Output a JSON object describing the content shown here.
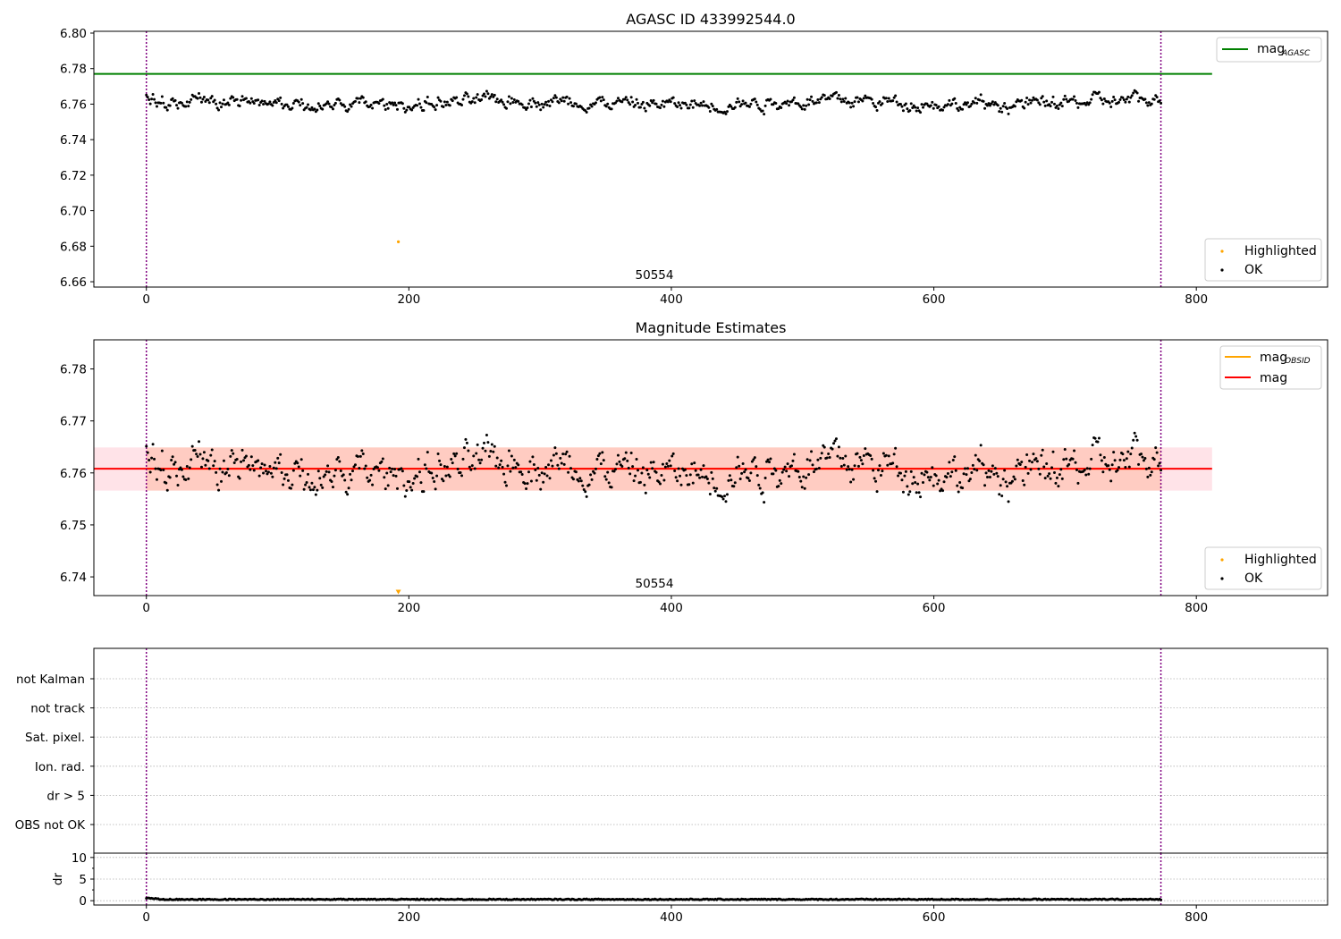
{
  "chart_data": [
    {
      "type": "scatter",
      "title": "AGASC ID 433992544.0",
      "xlim": [
        -40,
        900
      ],
      "ylim": [
        6.657,
        6.801
      ],
      "xticks": [
        0,
        200,
        400,
        600,
        800
      ],
      "yticks": [
        6.66,
        6.68,
        6.7,
        6.72,
        6.74,
        6.76,
        6.78,
        6.8
      ],
      "ytick_labels": [
        "6.66",
        "6.68",
        "6.70",
        "6.72",
        "6.74",
        "6.76",
        "6.78",
        "6.80"
      ],
      "obsid_label": "50554",
      "obsid_label_x": 386,
      "vlines": [
        0,
        773
      ],
      "reference_line": {
        "name": "mag",
        "subscript": "AGASC",
        "y": 6.777,
        "x_range": [
          -40,
          812
        ],
        "color": "#008000"
      },
      "series": [
        {
          "name": "Highlighted",
          "color": "#ffa500",
          "points": [
            [
              192,
              6.6825
            ]
          ]
        },
        {
          "name": "OK",
          "color": "#000000",
          "n": 773,
          "x_start": 0,
          "x_end": 773,
          "mean": 6.761,
          "spread": 0.0045,
          "min": 6.75,
          "max": 6.772
        }
      ],
      "legend_top": "top-right",
      "legend_bottom": "bottom-right",
      "grid": false
    },
    {
      "type": "scatter",
      "title": "Magnitude Estimates",
      "xlim": [
        -40,
        900
      ],
      "ylim": [
        6.7364,
        6.7856
      ],
      "xticks": [
        0,
        200,
        400,
        600,
        800
      ],
      "yticks": [
        6.74,
        6.75,
        6.76,
        6.77,
        6.78
      ],
      "ytick_labels": [
        "6.74",
        "6.75",
        "6.76",
        "6.77",
        "6.78"
      ],
      "obsid_label": "50554",
      "obsid_label_x": 386,
      "vlines": [
        0,
        773
      ],
      "bands": [
        {
          "y0": 6.7566,
          "y1": 6.7649,
          "x_range": [
            -40,
            812
          ],
          "color": "#ffc0cb",
          "opacity": 0.45
        },
        {
          "y0": 6.7566,
          "y1": 6.7649,
          "x_range": [
            0,
            773
          ],
          "color": "#ffa07a",
          "opacity": 0.35
        }
      ],
      "lines": [
        {
          "name": "mag",
          "subscript": "OBSID",
          "color": "#ffa500",
          "y": 6.7608,
          "x_range": [
            0,
            773
          ]
        },
        {
          "name": "mag",
          "subscript": "",
          "color": "#ff0000",
          "y": 6.7608,
          "x_range": [
            -40,
            812
          ]
        }
      ],
      "series": [
        {
          "name": "Highlighted",
          "color": "#ffa500",
          "points": [
            [
              192,
              6.737
            ]
          ],
          "marker": "triangle-down"
        },
        {
          "name": "OK",
          "color": "#000000",
          "n": 773,
          "x_start": 0,
          "x_end": 773
        }
      ],
      "legend_top": "top-right",
      "legend_bottom": "bottom-right",
      "grid": false
    },
    {
      "type": "flags",
      "xlim": [
        -40,
        900
      ],
      "vlines": [
        0,
        773
      ],
      "categories": [
        "not Kalman",
        "not track",
        "Sat. pixel.",
        "Ion. rad.",
        "dr > 5",
        "OBS not OK"
      ],
      "grid": true
    },
    {
      "type": "scatter",
      "xlim": [
        -40,
        900
      ],
      "ylim": [
        -1,
        11
      ],
      "xticks": [
        0,
        200,
        400,
        600,
        800
      ],
      "yticks": [
        0,
        5,
        10
      ],
      "ytick_labels": [
        "0",
        "5",
        "10"
      ],
      "ylabel": "dr",
      "vlines": [
        0,
        773
      ],
      "series": [
        {
          "name": "dr",
          "color": "#000000",
          "n": 773,
          "x_start": 0,
          "x_end": 773,
          "mean": 0.3,
          "spread": 0.12
        }
      ],
      "grid": true
    }
  ],
  "colors": {
    "ok": "#000000",
    "highlighted": "#ffa500",
    "agasc_line": "#008000",
    "mag_line": "#ff0000",
    "obsid_line": "#ffa500",
    "vline": "#800080",
    "grid": "#b0b0b0"
  }
}
